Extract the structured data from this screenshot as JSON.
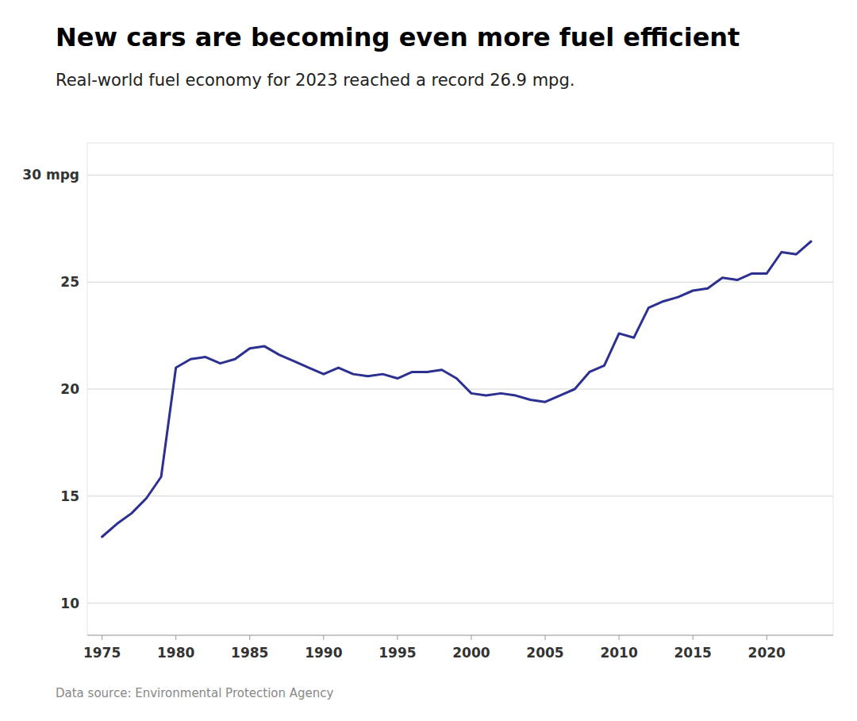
{
  "chart_data": {
    "type": "line",
    "title": "New cars are becoming even more fuel efficient",
    "subtitle": "Real-world fuel economy for 2023 reached a record 26.9 mpg.",
    "footnote": "Data source: Environmental Protection Agency",
    "color": "#2c3090",
    "grid": true,
    "x": [
      1975,
      1976,
      1977,
      1978,
      1979,
      1980,
      1981,
      1982,
      1983,
      1984,
      1985,
      1986,
      1987,
      1988,
      1989,
      1990,
      1991,
      1992,
      1993,
      1994,
      1995,
      1996,
      1997,
      1998,
      1999,
      2000,
      2001,
      2002,
      2003,
      2004,
      2005,
      2006,
      2007,
      2008,
      2009,
      2010,
      2011,
      2012,
      2013,
      2014,
      2015,
      2016,
      2017,
      2018,
      2019,
      2020,
      2021,
      2022,
      2023
    ],
    "values": [
      13.1,
      13.7,
      14.2,
      14.9,
      15.9,
      21.0,
      21.4,
      21.5,
      21.2,
      21.4,
      21.9,
      22.0,
      21.6,
      21.3,
      21.0,
      20.7,
      21.0,
      20.7,
      20.6,
      20.7,
      20.5,
      20.8,
      20.8,
      20.9,
      20.5,
      19.8,
      19.7,
      19.8,
      19.7,
      19.5,
      19.4,
      19.7,
      20.0,
      20.8,
      21.1,
      22.6,
      22.4,
      23.8,
      24.1,
      24.3,
      24.6,
      24.7,
      25.2,
      25.1,
      25.4,
      25.4,
      26.4,
      26.3,
      26.9
    ],
    "xlim": [
      1974.0,
      2024.5
    ],
    "ylim": [
      8.5,
      31.5
    ],
    "xticks": [
      1975,
      1980,
      1985,
      1990,
      1995,
      2000,
      2005,
      2010,
      2015,
      2020
    ],
    "yticks": [
      10,
      15,
      20,
      25,
      {
        "value": 30,
        "label": "30 mpg"
      }
    ]
  }
}
